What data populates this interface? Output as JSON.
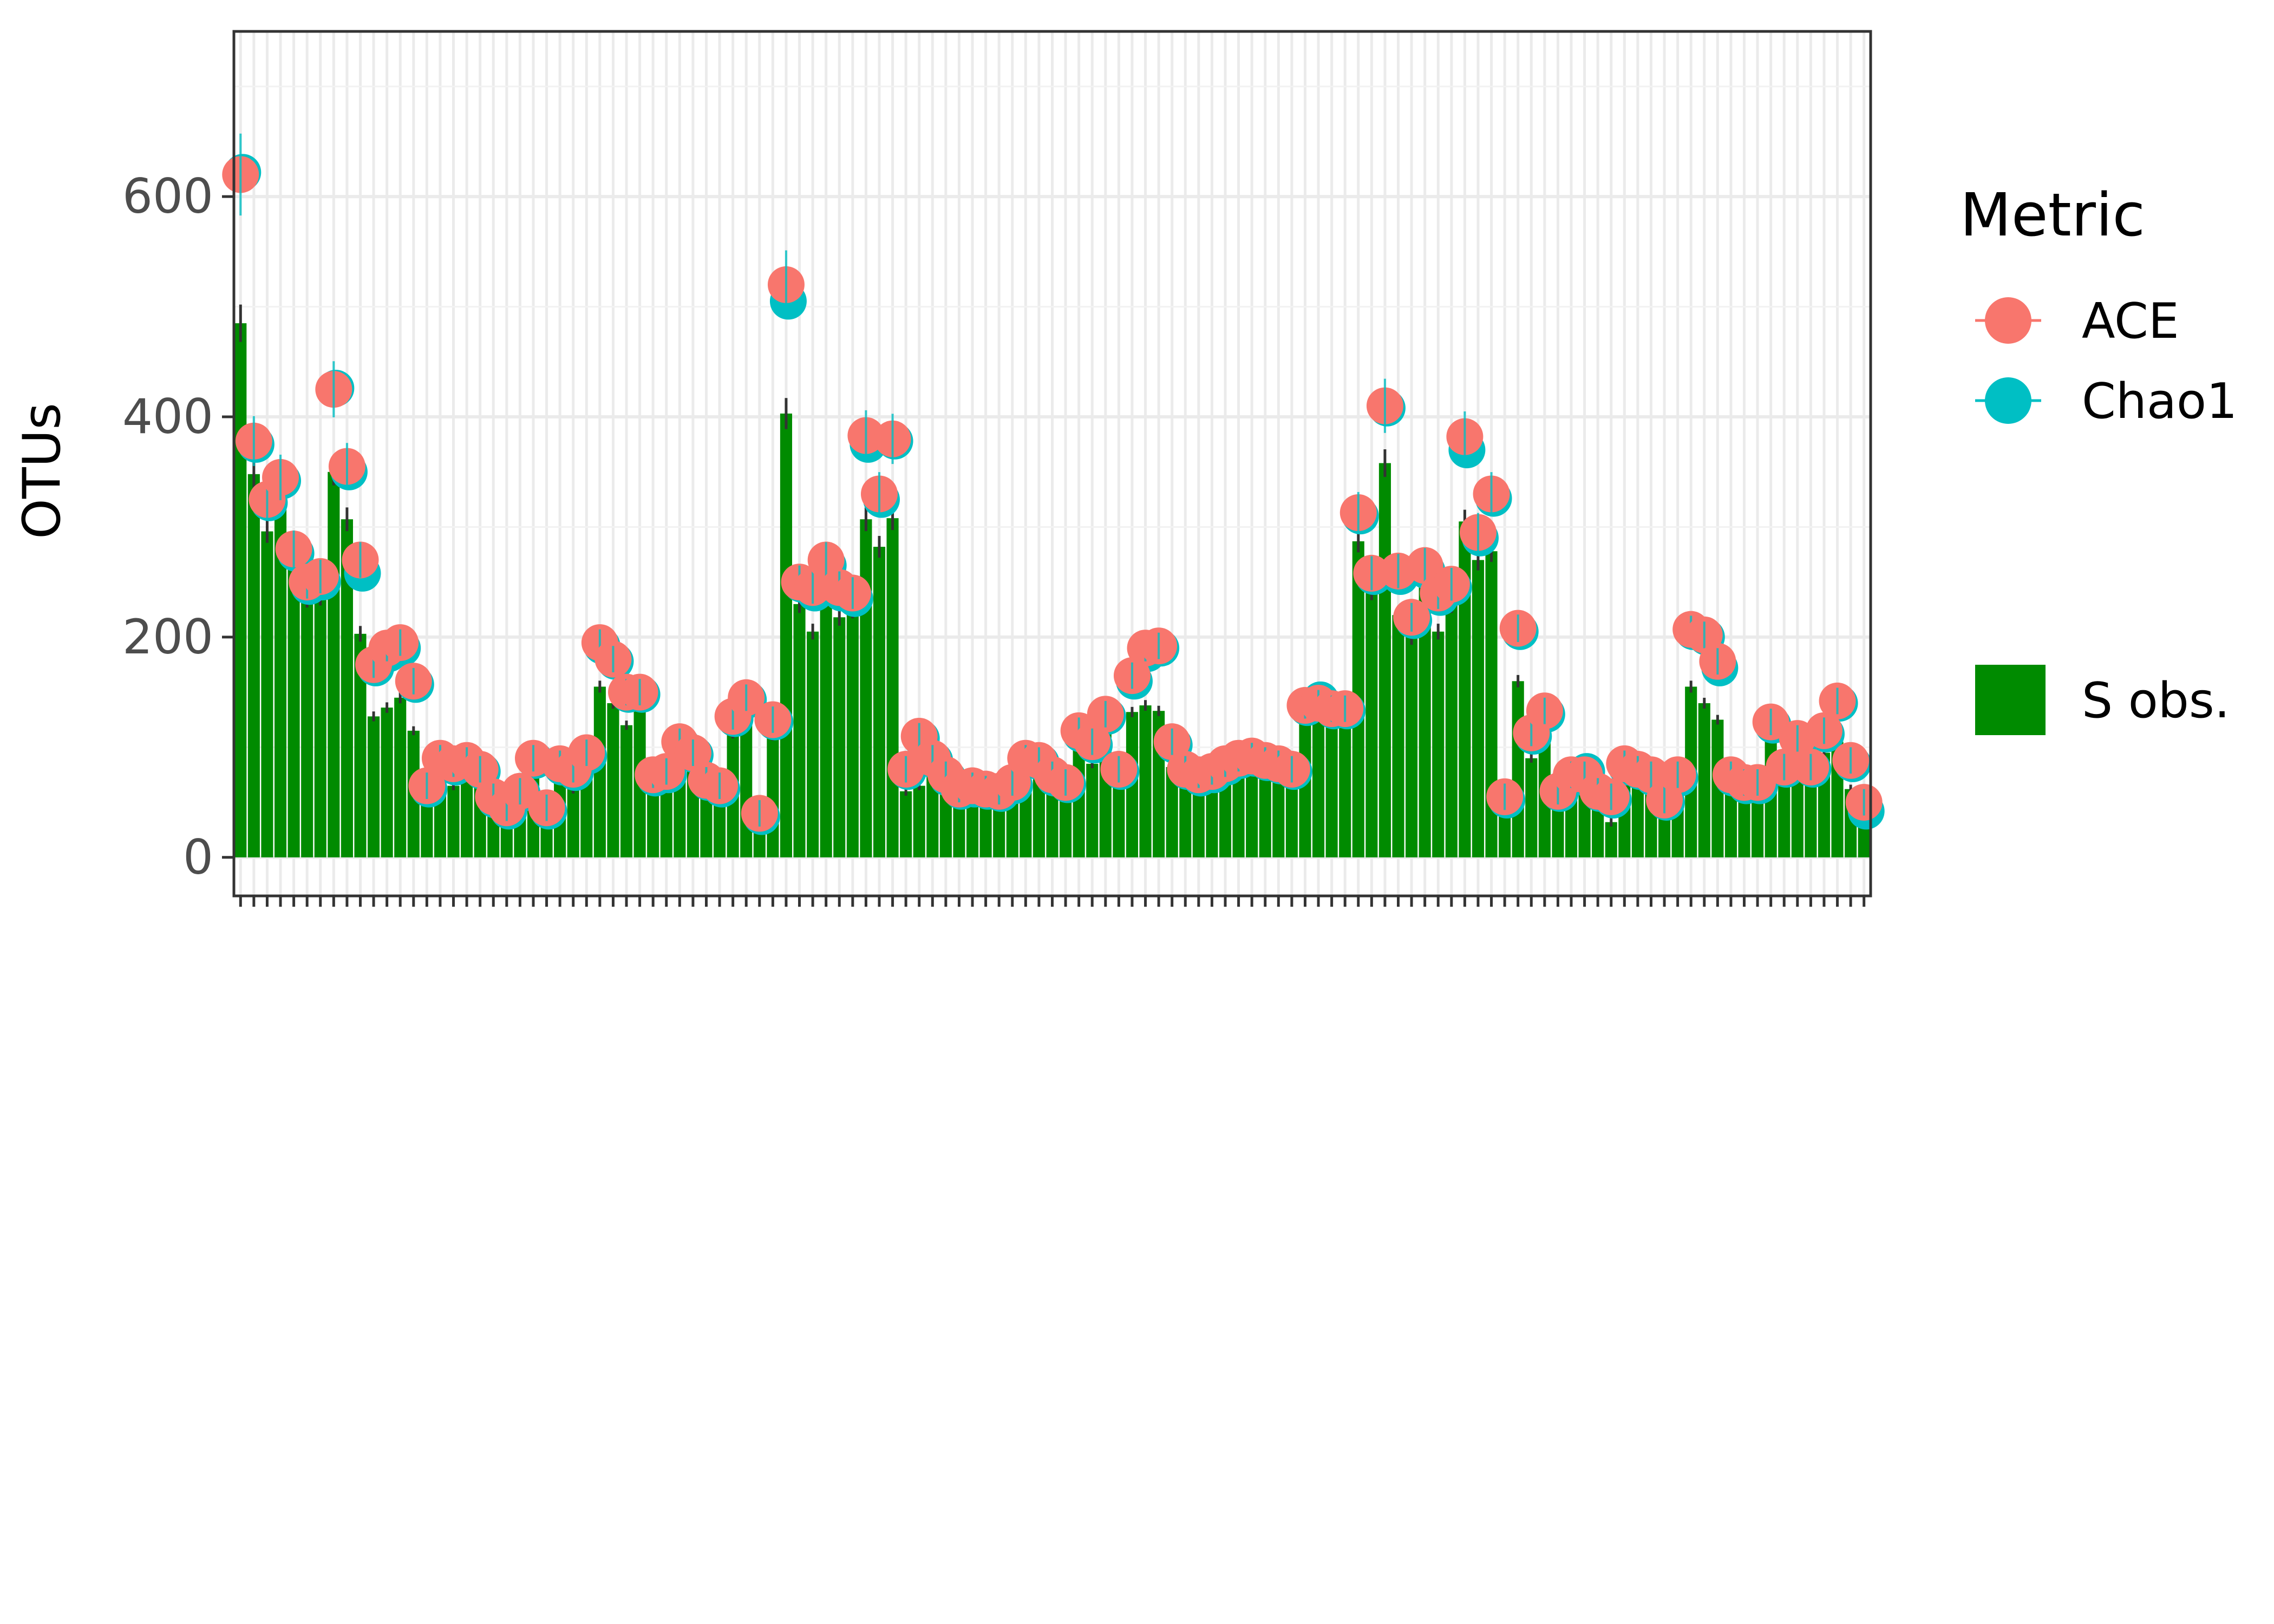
{
  "chart_data": {
    "type": "bar",
    "ylabel": "OTUs",
    "xlabel": "",
    "ylim": [
      -35,
      750
    ],
    "y_ticks": [
      0,
      200,
      400,
      600
    ],
    "grid": true,
    "legend": {
      "title": "Metric",
      "position": "right",
      "point_entries": [
        {
          "label": "ACE",
          "color": "#F8766D"
        },
        {
          "label": "Chao1",
          "color": "#00BFC4"
        }
      ],
      "bar_entry": {
        "label": "S obs.",
        "color": "#008B00"
      }
    },
    "colors": {
      "bar": "#008B00",
      "ace": "#F8766D",
      "chao1": "#00BFC4",
      "grid_major": "#EBEBEB",
      "grid_minor": "#F2F2F2",
      "axis_text": "#4D4D4D"
    },
    "series": [
      {
        "name": "S obs.",
        "values": [
          485,
          348,
          296,
          323,
          270,
          235,
          237,
          350,
          307,
          203,
          128,
          136,
          145,
          115,
          50,
          83,
          65,
          80,
          77,
          45,
          37,
          52,
          78,
          35,
          70,
          62,
          75,
          155,
          140,
          120,
          140,
          65,
          70,
          90,
          85,
          60,
          62,
          112,
          130,
          28,
          110,
          403,
          230,
          205,
          255,
          218,
          225,
          307,
          282,
          308,
          60,
          65,
          82,
          68,
          58,
          55,
          58,
          55,
          62,
          88,
          80,
          70,
          62,
          98,
          85,
          112,
          72,
          132,
          138,
          133,
          82,
          70,
          66,
          70,
          80,
          85,
          88,
          85,
          80,
          75,
          125,
          135,
          122,
          122,
          287,
          242,
          358,
          220,
          200,
          248,
          205,
          230,
          305,
          270,
          278,
          55,
          160,
          90,
          108,
          50,
          65,
          65,
          50,
          32,
          72,
          68,
          58,
          40,
          65,
          155,
          140,
          125,
          70,
          58,
          58,
          110,
          68,
          95,
          68,
          95,
          105,
          62,
          40
        ]
      },
      {
        "name": "ACE",
        "values": [
          620,
          378,
          325,
          345,
          280,
          250,
          255,
          425,
          355,
          270,
          175,
          190,
          195,
          160,
          65,
          90,
          85,
          88,
          80,
          55,
          45,
          60,
          90,
          45,
          85,
          80,
          95,
          195,
          180,
          150,
          150,
          75,
          78,
          105,
          95,
          70,
          65,
          128,
          145,
          40,
          125,
          520,
          250,
          245,
          270,
          245,
          240,
          383,
          330,
          380,
          80,
          110,
          90,
          75,
          62,
          65,
          62,
          60,
          68,
          90,
          88,
          75,
          68,
          115,
          105,
          130,
          80,
          165,
          190,
          192,
          105,
          80,
          75,
          78,
          85,
          90,
          92,
          88,
          85,
          80,
          138,
          140,
          135,
          135,
          313,
          258,
          410,
          260,
          218,
          265,
          240,
          248,
          382,
          295,
          330,
          55,
          208,
          113,
          133,
          60,
          75,
          75,
          60,
          55,
          85,
          80,
          75,
          52,
          75,
          207,
          202,
          178,
          75,
          68,
          68,
          123,
          82,
          108,
          82,
          115,
          142,
          88,
          50
        ]
      },
      {
        "name": "Chao1",
        "values": [
          622,
          375,
          322,
          342,
          276,
          246,
          250,
          426,
          350,
          258,
          172,
          185,
          190,
          157,
          62,
          88,
          82,
          85,
          78,
          52,
          42,
          58,
          88,
          42,
          82,
          77,
          92,
          192,
          178,
          148,
          148,
          72,
          75,
          102,
          93,
          68,
          62,
          126,
          143,
          37,
          123,
          505,
          248,
          240,
          265,
          240,
          235,
          375,
          325,
          378,
          78,
          108,
          88,
          72,
          60,
          62,
          60,
          58,
          65,
          88,
          86,
          72,
          66,
          112,
          102,
          128,
          78,
          160,
          185,
          190,
          102,
          78,
          72,
          75,
          82,
          88,
          90,
          86,
          83,
          78,
          136,
          143,
          133,
          133,
          310,
          255,
          408,
          255,
          215,
          260,
          236,
          245,
          370,
          290,
          326,
          52,
          205,
          110,
          130,
          58,
          72,
          78,
          58,
          52,
          82,
          78,
          72,
          50,
          72,
          205,
          200,
          172,
          72,
          65,
          65,
          120,
          80,
          105,
          80,
          112,
          140,
          85,
          42
        ]
      }
    ]
  }
}
